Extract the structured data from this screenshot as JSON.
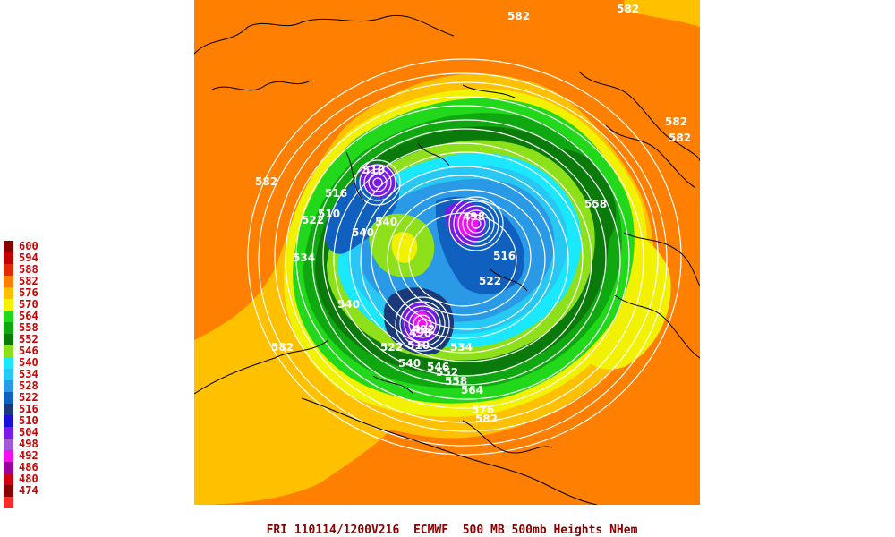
{
  "title": "FRI 110114/1200V216  ECMWF  500 MB 500mb Heights NHem",
  "legend": {
    "items": [
      {
        "label": "600",
        "color": "#8b0000"
      },
      {
        "label": "594",
        "color": "#c40000"
      },
      {
        "label": "588",
        "color": "#e22a00"
      },
      {
        "label": "582",
        "color": "#ff7f00"
      },
      {
        "label": "576",
        "color": "#ffc000"
      },
      {
        "label": "570",
        "color": "#f2f200"
      },
      {
        "label": "564",
        "color": "#22d81a"
      },
      {
        "label": "558",
        "color": "#10a810"
      },
      {
        "label": "552",
        "color": "#0a7a0a"
      },
      {
        "label": "546",
        "color": "#8ee01a"
      },
      {
        "label": "540",
        "color": "#1ae8ff"
      },
      {
        "label": "534",
        "color": "#28c8f4"
      },
      {
        "label": "528",
        "color": "#2a9ae6"
      },
      {
        "label": "522",
        "color": "#1060c0"
      },
      {
        "label": "516",
        "color": "#1a3a7a"
      },
      {
        "label": "510",
        "color": "#1a10d8"
      },
      {
        "label": "504",
        "color": "#7a1ae6"
      },
      {
        "label": "498",
        "color": "#a05ad8"
      },
      {
        "label": "492",
        "color": "#f010f0"
      },
      {
        "label": "486",
        "color": "#9a009a"
      },
      {
        "label": "480",
        "color": "#cc0010"
      },
      {
        "label": "474",
        "color": "#8a0000"
      }
    ],
    "bottom_swatch_color": "#ff2a2a"
  },
  "map": {
    "colors": {
      "ocean_warm": "#ff7f00",
      "yellow": "#ffc000",
      "light_yellow": "#f2f200",
      "green": "#22d81a",
      "mid_green": "#10a810",
      "dark_green": "#0a7a0a",
      "lime": "#8ee01a",
      "cyan": "#1ae8ff",
      "light_blue": "#28c8f4",
      "blue": "#2a9ae6",
      "navy": "#1060c0",
      "dark_navy": "#1a3a7a",
      "purple": "#7a1ae6",
      "magenta": "#f010f0"
    },
    "contour_labels": [
      {
        "text": "582"
      },
      {
        "text": "582"
      },
      {
        "text": "582"
      },
      {
        "text": "582"
      },
      {
        "text": "582"
      },
      {
        "text": "582"
      },
      {
        "text": "582"
      },
      {
        "text": "510"
      },
      {
        "text": "516"
      },
      {
        "text": "510"
      },
      {
        "text": "522"
      },
      {
        "text": "540"
      },
      {
        "text": "534"
      },
      {
        "text": "540"
      },
      {
        "text": "540"
      },
      {
        "text": "558"
      },
      {
        "text": "516"
      },
      {
        "text": "522"
      },
      {
        "text": "498"
      },
      {
        "text": "510"
      },
      {
        "text": "522"
      },
      {
        "text": "534"
      },
      {
        "text": "558"
      },
      {
        "text": "564"
      },
      {
        "text": "576"
      },
      {
        "text": "540"
      },
      {
        "text": "546"
      },
      {
        "text": "552"
      },
      {
        "text": "492"
      },
      {
        "text": "498"
      }
    ]
  }
}
